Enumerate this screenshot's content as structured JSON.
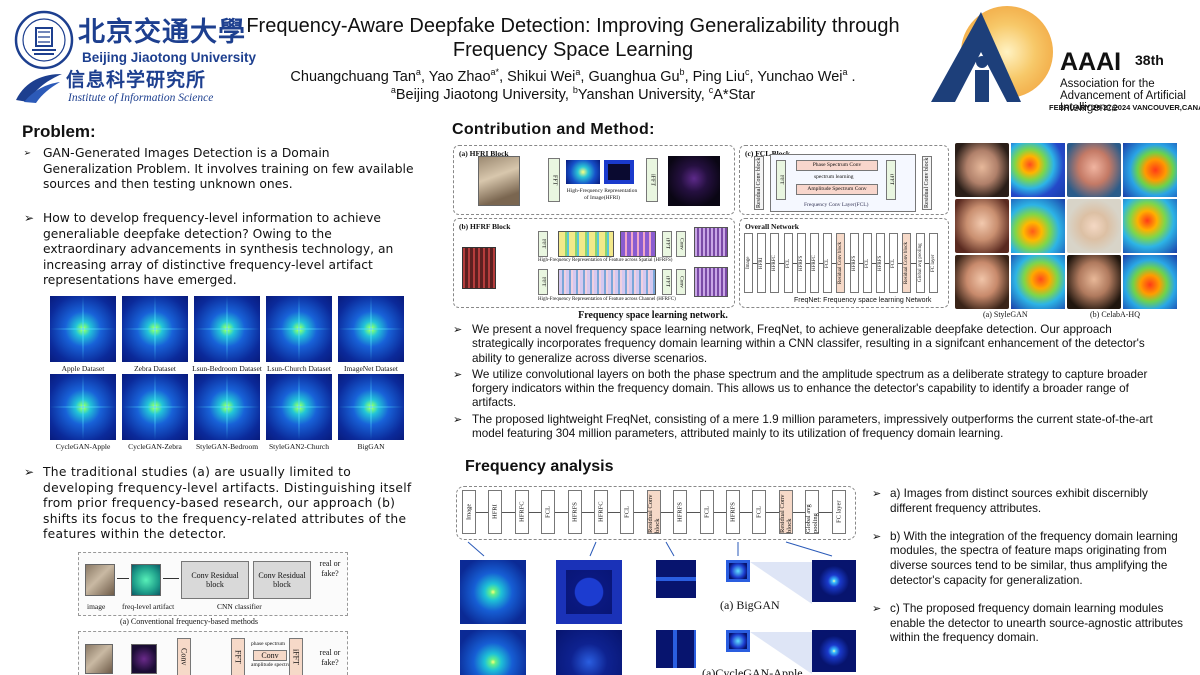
{
  "header": {
    "university_cn": "北京交通大學",
    "university_en": "Beijing Jiaotong University",
    "institute_cn": "信息科学研究所",
    "institute_en": "Institute of Information Science",
    "title_line1": "Frequency-Aware Deepfake Detection: Improving Generalizability through",
    "title_line2": "Frequency Space Learning",
    "authors": [
      {
        "name": "Chuangchuang Tan",
        "sup": "a"
      },
      {
        "name": "Yao Zhao",
        "sup": "a*"
      },
      {
        "name": "Shikui Wei",
        "sup": "a"
      },
      {
        "name": "Guanghua Gu",
        "sup": "b"
      },
      {
        "name": "Ping Liu",
        "sup": "c"
      },
      {
        "name": "Yunchao Wei",
        "sup": "a"
      }
    ],
    "affiliations": [
      {
        "sup": "a",
        "name": "Beijing Jiaotong University"
      },
      {
        "sup": "b",
        "name": "Yanshan University"
      },
      {
        "sup": "c",
        "name": "A*Star"
      }
    ],
    "conf_name": "AAAI",
    "conf_edition": "38th",
    "conf_assoc": "Association for the Advancement of Artificial Intelligence",
    "conf_dates": "FEBRUARY 20-27,2024 VANCOUVER,CANADA"
  },
  "problem": {
    "heading": "Problem:",
    "bullet1": "GAN-Generated Images Detection is a Domain Generalization Problem. It involves training on few available sources and then testing unknown ones.",
    "bullet2": "How to develop frequency-level information to achieve generaliable deepfake detection? Owing to the extraordinary advancements in synthesis technology, an increasing array of distinctive frequency-level artifact representations have emerged.",
    "bullet3": "The traditional studies (a) are usually limited to developing frequency-level artifacts. Distinguishing itself from prior frequency-based research, our approach (b) shifts its focus to the frequency-related attributes of the features within the detector.",
    "spectra_labels": [
      "Apple Dataset",
      "Zebra Dataset",
      "Lsun-Bedroom Dataset",
      "Lsun-Church Dataset",
      "ImageNet Dataset",
      "CycleGAN-Apple",
      "CycleGAN-Zebra",
      "StyleGAN-Bedroom",
      "StyleGAN2-Church",
      "BigGAN"
    ],
    "diagram_a": {
      "image": "image",
      "artifact": "freq-level artifact",
      "block1": "Conv Residual block",
      "block2": "Conv Residual block",
      "classifier": "CNN classifier",
      "output": "real or fake?",
      "caption": "(a) Conventional frequency-based methods"
    },
    "diagram_b": {
      "output": "real or fake?",
      "fft": "FFT",
      "ifft": "iFFT",
      "conv": "Conv",
      "phase": "phase spectrum",
      "amp": "amplitude spectrum"
    }
  },
  "contribution": {
    "heading": "Contribution and Method:",
    "panel_a": "(a) HFRI Block",
    "panel_b": "(b) HFRF Block",
    "panel_c": "(c) FCL Block",
    "panel_d": "Overall Network",
    "fft": "FFT",
    "ifft": "iFFT",
    "conv": "Conv",
    "hfri_caption": "High-Frequency Representation of Image(HFRI)",
    "hfrf_s": "High-Frequency Representation of Feature across Spatial (HFRFS)",
    "hfrf_c": "High-Frequency Representation of Feature across Channel (HFRFC)",
    "phase_conv": "Phase Spectrum Conv",
    "spectrum_learning": "spectrum learning",
    "amp_conv": "Amplitude Spectrum Conv",
    "fcl": "Frequency Conv Layer(FCL)",
    "residual": "Residual Conv block",
    "network_blocks": [
      "Image",
      "HFRI",
      "HFRFC",
      "FCL",
      "HFRFS",
      "HFRFC",
      "FCL",
      "Residual Conv block",
      "HFRFS",
      "FCL",
      "HFRFS",
      "FCL",
      "Residual Conv block",
      "Global avg pooling",
      "FC layer"
    ],
    "network_caption": "FreqNet: Frequency space learning Network",
    "figure_caption": "Frequency space learning network.",
    "face_captions": [
      "(a) StyleGAN",
      "(b) CelabA-HQ"
    ],
    "bullets": [
      "We present a novel frequency space learning network, FreqNet, to achieve generalizable deepfake detection. Our approach strategically incorporates frequency domain learning within a CNN classifer, resulting in a signifcant enhancement of the detector's ability to generalize across diverse scenarios.",
      "We utilize convolutional layers on both the phase spectrum and the amplitude spectrum as a deliberate strategy to capture broader forgery indicators within the frequency domain. This allows us to enhance the detector's capability to identify a broader range of artifacts.",
      "The proposed lightweight FreqNet, consisting of a mere 1.9 million parameters, impressively outperforms the current state-of-the-art model featuring 304 million parameters, attributed mainly to its utilization of frequency domain learning."
    ]
  },
  "frequency": {
    "heading": "Frequency analysis",
    "network_blocks": [
      "Image",
      "HFRI",
      "HFRFC",
      "FCL",
      "HFRFS",
      "HFRFC",
      "FCL",
      "Residual Conv block",
      "HFRFS",
      "FCL",
      "HFRFS",
      "FCL",
      "Residual Conv block",
      "Global avg pooling",
      "FC layer"
    ],
    "caption_a": "(a) BigGAN",
    "caption_b": "(a)CycleGAN-Apple",
    "bullets": [
      "a) Images from distinct sources exhibit discernibly different frequency attributes.",
      "b) With the integration of the frequency domain learning modules, the spectra of feature maps originating from diverse sources tend to be similar, thus amplifying the detector's capacity for generalization.",
      "c) The proposed frequency domain learning modules enable the detector to unearth source-agnostic attributes within the frequency domain."
    ]
  }
}
